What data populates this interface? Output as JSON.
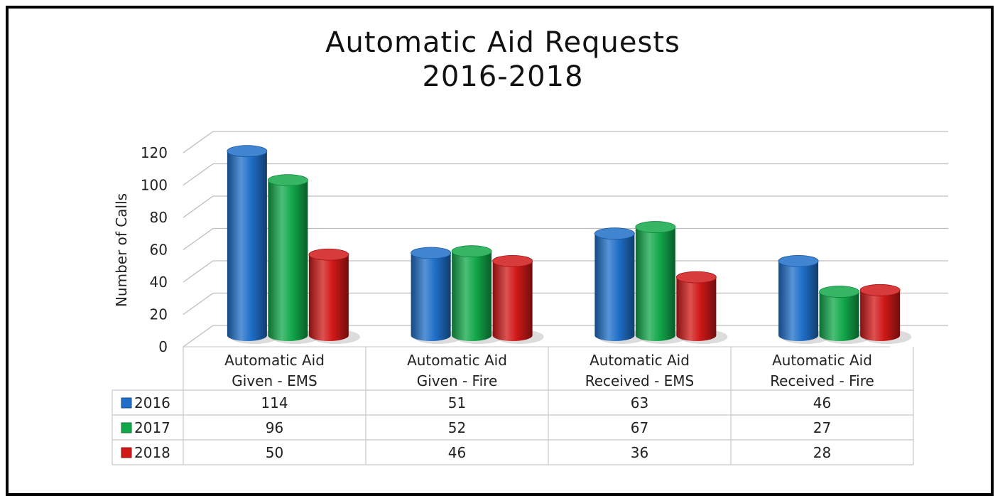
{
  "chart_data": {
    "type": "bar",
    "title": [
      "Automatic Aid Requests",
      "2016-2018"
    ],
    "ylabel": "Number of Calls",
    "xlabel": "",
    "ylim": [
      0,
      120
    ],
    "yticks": [
      "0",
      "20",
      "40",
      "60",
      "80",
      "100",
      "120"
    ],
    "categories": [
      [
        "Automatic Aid",
        "Given - EMS"
      ],
      [
        "Automatic Aid",
        "Given - Fire"
      ],
      [
        "Automatic Aid",
        "Received - EMS"
      ],
      [
        "Automatic Aid",
        "Received - Fire"
      ]
    ],
    "series": [
      {
        "name": "2016",
        "color": "#1f6fc8",
        "values": [
          114,
          51,
          63,
          46
        ]
      },
      {
        "name": "2017",
        "color": "#12a84a",
        "values": [
          96,
          52,
          67,
          27
        ]
      },
      {
        "name": "2018",
        "color": "#d01818",
        "values": [
          50,
          46,
          36,
          28
        ]
      }
    ],
    "grid": true,
    "legend": "data-table"
  }
}
